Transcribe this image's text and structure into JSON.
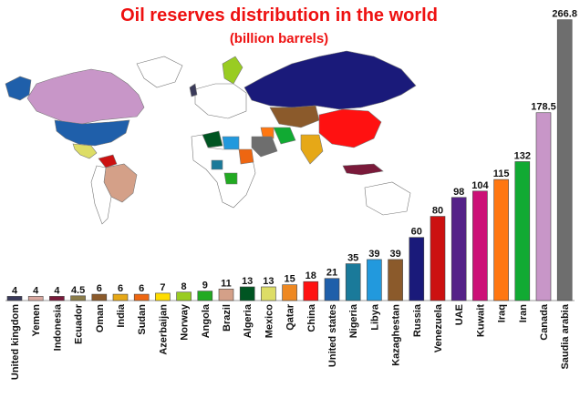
{
  "chart_data": {
    "type": "bar",
    "title": "Oil reserves distribution in the world",
    "subtitle": "(billion barrels)",
    "categories": [
      "United kingdom",
      "Yemen",
      "Indonesia",
      "Ecuador",
      "Oman",
      "India",
      "Sudan",
      "Azerbaijan",
      "Norway",
      "Angola",
      "Brazil",
      "Algeria",
      "Mexico",
      "Qatar",
      "China",
      "United states",
      "Nigeria",
      "Libya",
      "Kazaghestan",
      "Russia",
      "Venezuela",
      "UAE",
      "Kuwait",
      "Iraq",
      "Iran",
      "Canada",
      "Saudia arabia"
    ],
    "values": [
      4,
      4,
      4,
      4.5,
      6,
      6,
      6,
      7,
      8,
      9,
      11,
      13,
      13,
      15,
      18,
      21,
      35,
      39,
      39,
      60,
      80,
      98,
      104,
      115,
      132,
      178.5,
      266.8
    ],
    "value_labels": [
      "4",
      "4",
      "4",
      "4.5",
      "6",
      "6",
      "6",
      "7",
      "8",
      "9",
      "11",
      "13",
      "13",
      "15",
      "18",
      "21",
      "35",
      "39",
      "39",
      "60",
      "80",
      "98",
      "104",
      "115",
      "132",
      "178.5",
      "266.8"
    ],
    "colors": [
      "#3a3a5a",
      "#d9a8a0",
      "#7a1a3a",
      "#8b7d4a",
      "#8b5a2b",
      "#e6a817",
      "#ee6611",
      "#ffdd00",
      "#99cc22",
      "#22aa22",
      "#d4a088",
      "#005522",
      "#dddd66",
      "#ee8822",
      "#ff1111",
      "#1f5faa",
      "#1a7a9a",
      "#2299dd",
      "#8b5a2b",
      "#1a1a7a",
      "#cc1111",
      "#552288",
      "#cc1177",
      "#ff7711",
      "#11aa33",
      "#c896c8",
      "#6e6e6e"
    ],
    "ylim": [
      0,
      270
    ],
    "xlabel": "",
    "ylabel": "",
    "grid": false,
    "legend": "none"
  },
  "map": {
    "description_icon": "world-map-icon",
    "ocean_color": "#ffffff",
    "land_color": "#ffffff",
    "border_color": "#888888"
  }
}
